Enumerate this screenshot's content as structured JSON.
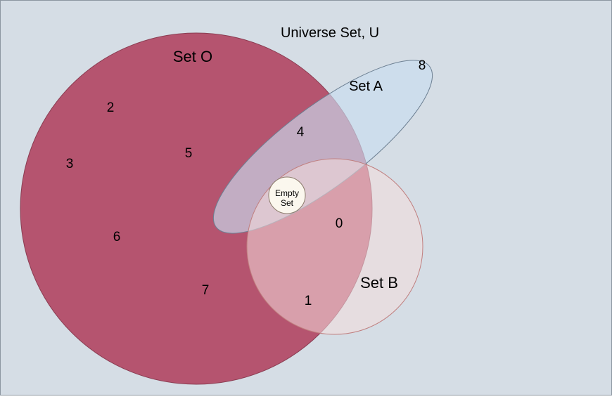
{
  "universe": {
    "label": "Universe Set, U",
    "fill": "#d5dde5",
    "stroke": "#8c96a0"
  },
  "sets": {
    "o": {
      "label": "Set O",
      "fill": "#b5546f",
      "stroke": "#8a3d52"
    },
    "a": {
      "label": "Set A",
      "fill": "#c9ddf0",
      "stroke": "#6c7f92"
    },
    "b": {
      "label": "Set B",
      "fill": "#f4dcdc",
      "stroke": "#c07f7f"
    }
  },
  "empty_set": {
    "label_line1": "Empty",
    "label_line2": "Set",
    "fill": "#fbf7ee",
    "stroke": "#8a7a6a"
  },
  "elements": {
    "e0": "0",
    "e1": "1",
    "e2": "2",
    "e3": "3",
    "e4": "4",
    "e5": "5",
    "e6": "6",
    "e7": "7",
    "e8": "8"
  }
}
